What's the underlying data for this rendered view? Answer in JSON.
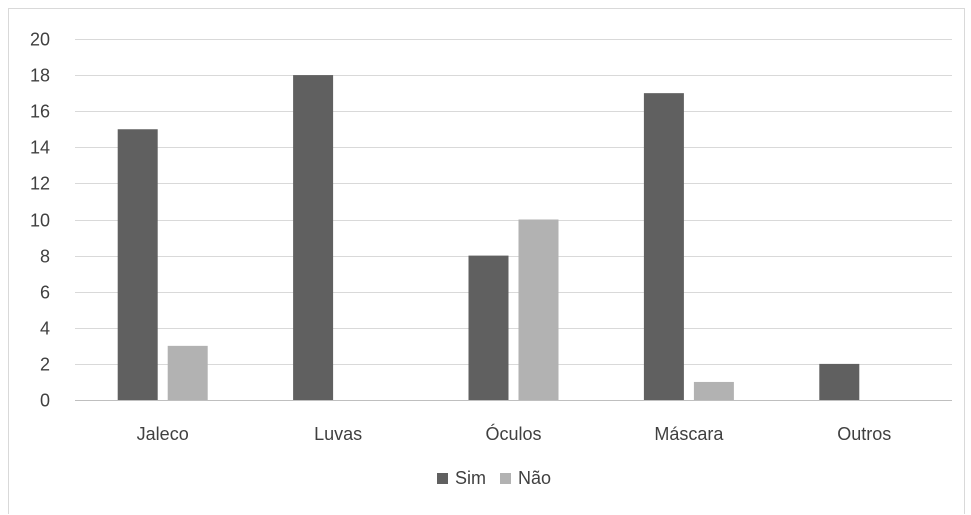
{
  "chart_data": {
    "type": "bar",
    "categories": [
      "Jaleco",
      "Luvas",
      "Óculos",
      "Máscara",
      "Outros"
    ],
    "series": [
      {
        "name": "Sim",
        "values": [
          15,
          18,
          8,
          17,
          2
        ],
        "color": "#606060"
      },
      {
        "name": "Não",
        "values": [
          3,
          0,
          10,
          1,
          0
        ],
        "color": "#b2b2b2"
      }
    ],
    "ylim": [
      0,
      20
    ],
    "yticks": [
      0,
      2,
      4,
      6,
      8,
      10,
      12,
      14,
      16,
      18,
      20
    ],
    "title": "",
    "xlabel": "",
    "ylabel": "",
    "grid": true,
    "legend_position": "bottom",
    "gridline_color": "#d9d9d9",
    "axis_color": "#bfbfbf",
    "text_color": "#404040"
  }
}
